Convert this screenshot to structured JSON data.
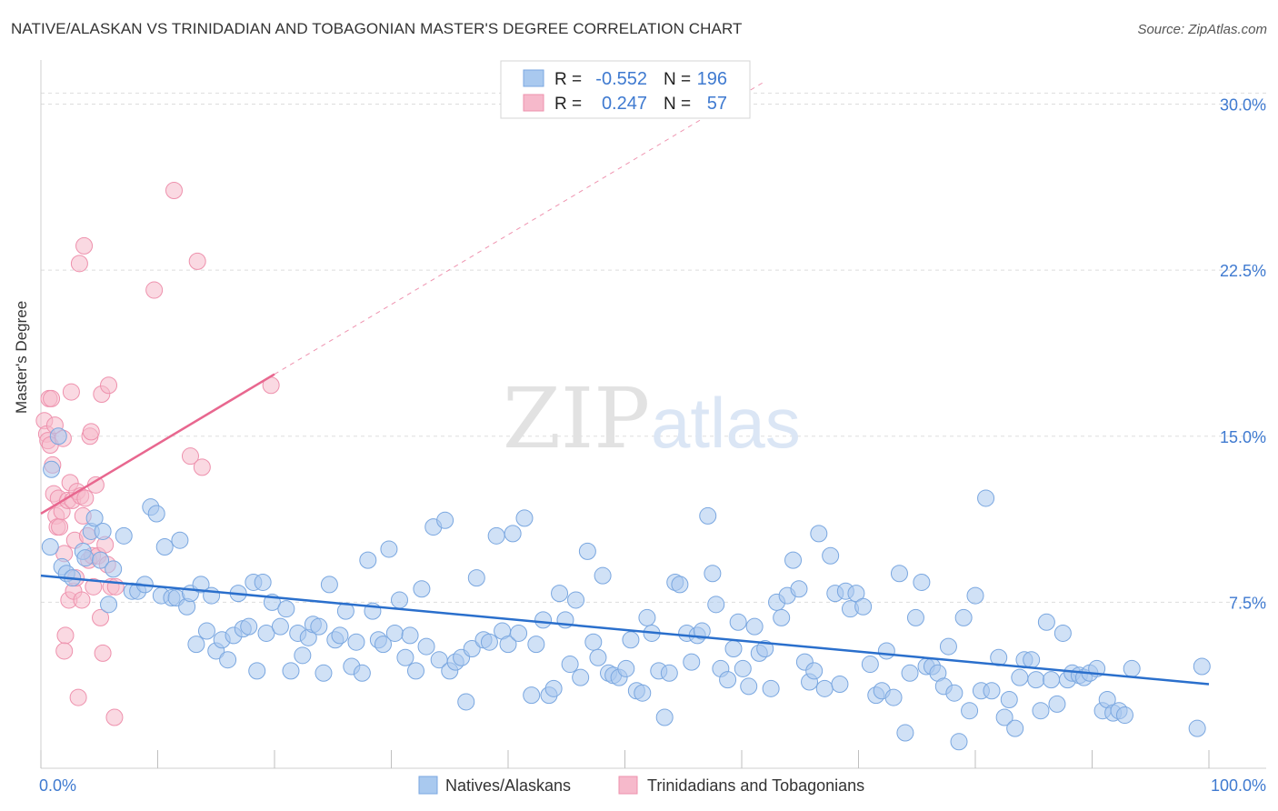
{
  "header": {
    "title": "NATIVE/ALASKAN VS TRINIDADIAN AND TOBAGONIAN MASTER'S DEGREE CORRELATION CHART",
    "source": "Source: ZipAtlas.com"
  },
  "watermark": {
    "zip": "ZIP",
    "atlas": "atlas"
  },
  "stats": [
    {
      "r_label": "R =",
      "r": "-0.552",
      "n_label": "N =",
      "n": "196"
    },
    {
      "r_label": "R =",
      "r": "0.247",
      "n_label": "N =",
      "n": "57"
    }
  ],
  "colors": {
    "blue_fill": "#a9c9ef",
    "blue_stroke": "#7aa7e0",
    "blue_line": "#2a6fcc",
    "pink_fill": "#f6b9cb",
    "pink_stroke": "#ee91ad",
    "pink_line": "#e8678f",
    "axis_text": "#3f7ad0",
    "grid": "#dddddd"
  },
  "chart_data": {
    "type": "scatter",
    "title": "NATIVE/ALASKAN VS TRINIDADIAN AND TOBAGONIAN MASTER'S DEGREE CORRELATION CHART",
    "xlabel": "",
    "ylabel": "Master's Degree",
    "xlim": [
      0,
      100
    ],
    "ylim": [
      0,
      31.5
    ],
    "x_tick_labels": [
      "0.0%",
      "100.0%"
    ],
    "y_ticks": [
      7.5,
      15.0,
      22.5,
      30.0
    ],
    "y_tick_labels": [
      "7.5%",
      "15.0%",
      "22.5%",
      "30.0%"
    ],
    "grid": true,
    "legend_position": "bottom-center",
    "series": [
      {
        "name": "Natives/Alaskans",
        "color": "#a9c9ef",
        "trend": {
          "x0": 0,
          "y0": 8.7,
          "x1": 100,
          "y1": 3.8,
          "style": "solid"
        },
        "points": [
          [
            0.8,
            10.0
          ],
          [
            0.9,
            13.5
          ],
          [
            1.5,
            15.0
          ],
          [
            1.8,
            9.1
          ],
          [
            2.2,
            8.8
          ],
          [
            2.7,
            8.6
          ],
          [
            3.6,
            9.8
          ],
          [
            3.8,
            9.5
          ],
          [
            4.3,
            10.7
          ],
          [
            4.6,
            11.3
          ],
          [
            5.1,
            9.4
          ],
          [
            5.3,
            10.7
          ],
          [
            5.8,
            7.4
          ],
          [
            6.2,
            9.0
          ],
          [
            7.1,
            10.5
          ],
          [
            7.8,
            8.0
          ],
          [
            8.3,
            8.0
          ],
          [
            8.9,
            8.3
          ],
          [
            9.4,
            11.8
          ],
          [
            9.9,
            11.5
          ],
          [
            10.3,
            7.8
          ],
          [
            10.6,
            10.0
          ],
          [
            11.2,
            7.7
          ],
          [
            11.6,
            7.7
          ],
          [
            11.9,
            10.3
          ],
          [
            12.5,
            7.3
          ],
          [
            12.8,
            7.9
          ],
          [
            13.3,
            5.6
          ],
          [
            13.7,
            8.3
          ],
          [
            14.2,
            6.2
          ],
          [
            14.6,
            7.8
          ],
          [
            15.0,
            5.3
          ],
          [
            15.5,
            5.8
          ],
          [
            16.0,
            4.9
          ],
          [
            16.5,
            6.0
          ],
          [
            16.9,
            7.9
          ],
          [
            17.3,
            6.3
          ],
          [
            17.8,
            6.4
          ],
          [
            18.2,
            8.4
          ],
          [
            18.5,
            4.4
          ],
          [
            19.0,
            8.4
          ],
          [
            19.3,
            6.1
          ],
          [
            19.8,
            7.5
          ],
          [
            20.5,
            6.4
          ],
          [
            21.0,
            7.2
          ],
          [
            21.4,
            4.4
          ],
          [
            22.0,
            6.1
          ],
          [
            22.4,
            5.1
          ],
          [
            22.9,
            5.9
          ],
          [
            23.3,
            6.5
          ],
          [
            23.8,
            6.4
          ],
          [
            24.2,
            4.3
          ],
          [
            24.7,
            8.3
          ],
          [
            25.2,
            5.8
          ],
          [
            25.6,
            6.0
          ],
          [
            26.1,
            7.1
          ],
          [
            26.6,
            4.6
          ],
          [
            27.0,
            5.7
          ],
          [
            27.5,
            4.3
          ],
          [
            28.0,
            9.4
          ],
          [
            28.4,
            7.1
          ],
          [
            28.9,
            5.8
          ],
          [
            29.3,
            5.6
          ],
          [
            29.8,
            9.9
          ],
          [
            30.3,
            6.1
          ],
          [
            30.7,
            7.6
          ],
          [
            31.2,
            5.0
          ],
          [
            31.6,
            6.0
          ],
          [
            32.1,
            4.4
          ],
          [
            32.6,
            8.1
          ],
          [
            33.0,
            5.5
          ],
          [
            33.6,
            10.9
          ],
          [
            34.1,
            4.9
          ],
          [
            34.6,
            11.2
          ],
          [
            35.0,
            4.4
          ],
          [
            35.5,
            4.8
          ],
          [
            36.0,
            5.0
          ],
          [
            36.4,
            3.0
          ],
          [
            36.9,
            5.4
          ],
          [
            37.3,
            8.6
          ],
          [
            37.9,
            5.8
          ],
          [
            38.4,
            5.7
          ],
          [
            39.0,
            10.5
          ],
          [
            39.5,
            6.2
          ],
          [
            40.0,
            5.6
          ],
          [
            40.4,
            10.6
          ],
          [
            40.9,
            6.1
          ],
          [
            41.4,
            11.3
          ],
          [
            42.0,
            3.3
          ],
          [
            42.4,
            5.6
          ],
          [
            43.0,
            6.7
          ],
          [
            43.5,
            3.3
          ],
          [
            43.9,
            3.6
          ],
          [
            44.4,
            7.9
          ],
          [
            44.9,
            6.7
          ],
          [
            45.3,
            4.7
          ],
          [
            45.8,
            7.6
          ],
          [
            46.2,
            4.1
          ],
          [
            46.8,
            9.8
          ],
          [
            47.3,
            5.7
          ],
          [
            47.7,
            5.0
          ],
          [
            48.1,
            8.7
          ],
          [
            48.6,
            4.3
          ],
          [
            49.0,
            4.2
          ],
          [
            49.5,
            4.1
          ],
          [
            50.1,
            4.5
          ],
          [
            50.5,
            5.8
          ],
          [
            51.0,
            3.5
          ],
          [
            51.5,
            3.4
          ],
          [
            51.9,
            6.8
          ],
          [
            52.3,
            6.1
          ],
          [
            52.9,
            4.4
          ],
          [
            53.4,
            2.3
          ],
          [
            53.8,
            4.3
          ],
          [
            54.3,
            8.4
          ],
          [
            54.7,
            8.3
          ],
          [
            55.3,
            6.1
          ],
          [
            55.7,
            4.8
          ],
          [
            56.2,
            6.0
          ],
          [
            56.6,
            6.2
          ],
          [
            57.1,
            11.4
          ],
          [
            57.5,
            8.8
          ],
          [
            57.8,
            7.4
          ],
          [
            58.2,
            4.5
          ],
          [
            58.8,
            4.0
          ],
          [
            59.3,
            5.4
          ],
          [
            59.7,
            6.6
          ],
          [
            60.1,
            4.5
          ],
          [
            60.6,
            3.7
          ],
          [
            61.1,
            6.4
          ],
          [
            61.5,
            5.2
          ],
          [
            62.0,
            5.4
          ],
          [
            62.5,
            3.6
          ],
          [
            63.0,
            7.5
          ],
          [
            63.4,
            6.8
          ],
          [
            63.9,
            7.8
          ],
          [
            64.4,
            9.4
          ],
          [
            64.9,
            8.1
          ],
          [
            65.4,
            4.8
          ],
          [
            65.8,
            3.9
          ],
          [
            66.2,
            4.4
          ],
          [
            66.6,
            10.6
          ],
          [
            67.1,
            3.6
          ],
          [
            67.6,
            9.6
          ],
          [
            68.0,
            7.9
          ],
          [
            68.4,
            3.8
          ],
          [
            68.9,
            8.0
          ],
          [
            69.3,
            7.2
          ],
          [
            69.8,
            7.9
          ],
          [
            70.4,
            7.3
          ],
          [
            71.0,
            4.7
          ],
          [
            71.5,
            3.3
          ],
          [
            72.0,
            3.5
          ],
          [
            72.4,
            5.3
          ],
          [
            73.0,
            3.2
          ],
          [
            73.5,
            8.8
          ],
          [
            74.0,
            1.6
          ],
          [
            74.4,
            4.3
          ],
          [
            74.9,
            6.8
          ],
          [
            75.4,
            8.4
          ],
          [
            75.8,
            4.6
          ],
          [
            76.3,
            4.6
          ],
          [
            76.8,
            4.3
          ],
          [
            77.3,
            3.7
          ],
          [
            77.7,
            5.5
          ],
          [
            78.2,
            3.4
          ],
          [
            78.6,
            1.2
          ],
          [
            79.0,
            6.8
          ],
          [
            79.5,
            2.6
          ],
          [
            80.0,
            7.8
          ],
          [
            80.5,
            3.5
          ],
          [
            80.9,
            12.2
          ],
          [
            81.4,
            3.5
          ],
          [
            82.0,
            5.0
          ],
          [
            82.5,
            2.3
          ],
          [
            82.9,
            3.1
          ],
          [
            83.4,
            1.8
          ],
          [
            83.8,
            4.1
          ],
          [
            84.2,
            4.9
          ],
          [
            84.8,
            4.9
          ],
          [
            85.2,
            4.0
          ],
          [
            85.6,
            2.6
          ],
          [
            86.1,
            6.6
          ],
          [
            86.5,
            4.0
          ],
          [
            87.0,
            2.9
          ],
          [
            87.5,
            6.1
          ],
          [
            87.9,
            4.0
          ],
          [
            88.3,
            4.3
          ],
          [
            88.9,
            4.2
          ],
          [
            89.3,
            4.1
          ],
          [
            89.8,
            4.3
          ],
          [
            90.4,
            4.5
          ],
          [
            90.9,
            2.6
          ],
          [
            91.3,
            3.1
          ],
          [
            91.8,
            2.5
          ],
          [
            92.3,
            2.6
          ],
          [
            92.8,
            2.4
          ],
          [
            93.4,
            4.5
          ],
          [
            99.4,
            4.6
          ],
          [
            99.0,
            1.8
          ]
        ]
      },
      {
        "name": "Trinidadians and Tobagonians",
        "color": "#f6b9cb",
        "trend": {
          "x0": 0,
          "y0": 11.5,
          "x1": 20,
          "y1": 17.8,
          "style": "solid",
          "extend_x1": 100,
          "extend_y1": 43.2
        },
        "points": [
          [
            0.3,
            15.7
          ],
          [
            0.5,
            15.1
          ],
          [
            0.6,
            14.8
          ],
          [
            0.7,
            16.7
          ],
          [
            0.8,
            14.6
          ],
          [
            0.9,
            16.7
          ],
          [
            1.0,
            13.7
          ],
          [
            1.1,
            12.4
          ],
          [
            1.2,
            15.5
          ],
          [
            1.3,
            11.4
          ],
          [
            1.4,
            10.9
          ],
          [
            1.5,
            12.2
          ],
          [
            1.6,
            10.9
          ],
          [
            1.8,
            11.6
          ],
          [
            1.9,
            14.9
          ],
          [
            2.0,
            9.7
          ],
          [
            2.1,
            6.0
          ],
          [
            2.0,
            5.3
          ],
          [
            2.3,
            12.1
          ],
          [
            2.4,
            7.6
          ],
          [
            2.5,
            12.9
          ],
          [
            2.6,
            17.0
          ],
          [
            2.7,
            12.1
          ],
          [
            2.8,
            8.0
          ],
          [
            2.9,
            10.3
          ],
          [
            3.0,
            8.6
          ],
          [
            3.1,
            12.5
          ],
          [
            3.2,
            3.2
          ],
          [
            3.3,
            22.8
          ],
          [
            3.4,
            12.3
          ],
          [
            3.5,
            7.6
          ],
          [
            3.6,
            11.4
          ],
          [
            3.7,
            23.6
          ],
          [
            3.8,
            12.2
          ],
          [
            4.0,
            10.5
          ],
          [
            4.1,
            9.4
          ],
          [
            4.2,
            15.0
          ],
          [
            4.3,
            15.2
          ],
          [
            4.4,
            9.6
          ],
          [
            4.5,
            8.2
          ],
          [
            4.7,
            12.8
          ],
          [
            4.9,
            9.6
          ],
          [
            5.1,
            6.8
          ],
          [
            5.2,
            16.9
          ],
          [
            5.3,
            5.2
          ],
          [
            5.5,
            10.1
          ],
          [
            5.7,
            9.2
          ],
          [
            5.8,
            17.3
          ],
          [
            6.0,
            8.2
          ],
          [
            6.3,
            2.3
          ],
          [
            6.4,
            8.2
          ],
          [
            9.7,
            21.6
          ],
          [
            11.4,
            26.1
          ],
          [
            12.8,
            14.1
          ],
          [
            13.4,
            22.9
          ],
          [
            13.8,
            13.6
          ],
          [
            19.7,
            17.3
          ]
        ]
      }
    ]
  },
  "legend": {
    "items": [
      {
        "label": "Natives/Alaskans"
      },
      {
        "label": "Trinidadians and Tobagonians"
      }
    ]
  }
}
